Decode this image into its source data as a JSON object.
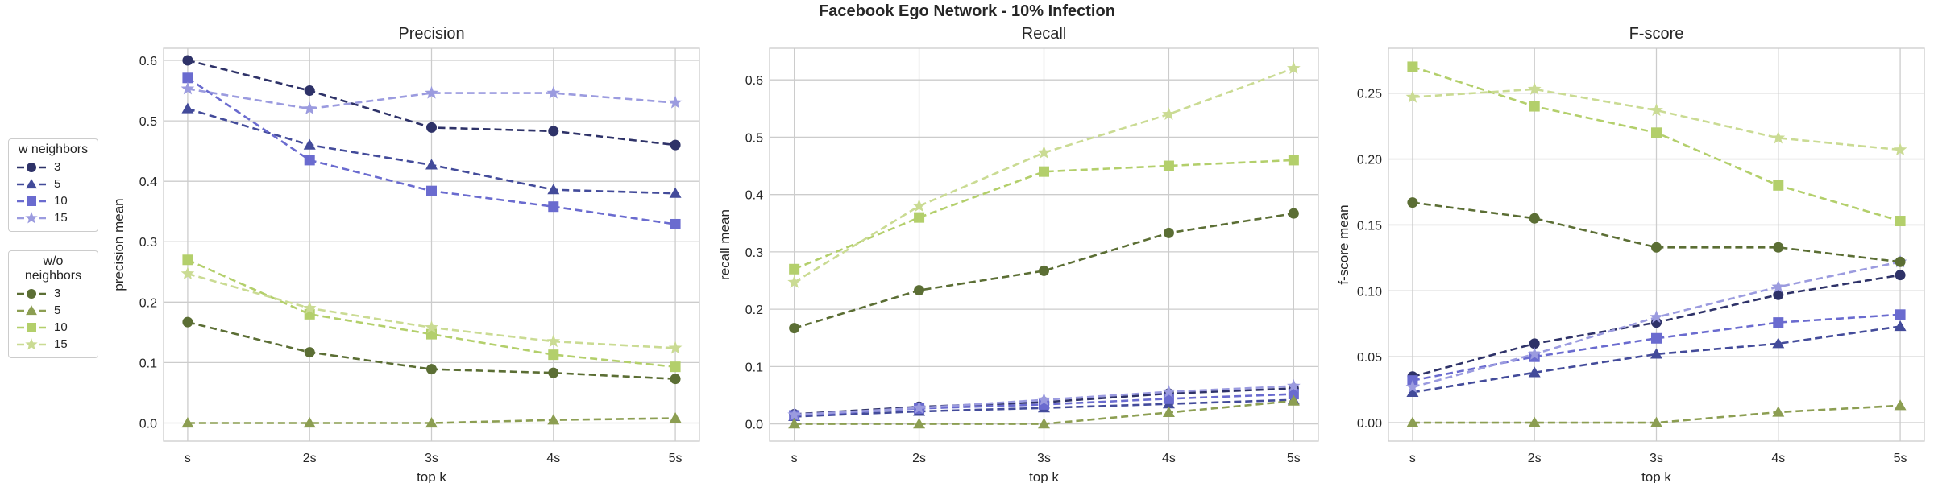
{
  "figure_title": "Facebook Ego Network - 10% Infection",
  "legends": [
    {
      "title": "w neighbors",
      "entries": [
        {
          "label": "3",
          "color": "#2e3268",
          "marker": "circle"
        },
        {
          "label": "5",
          "color": "#434b9a",
          "marker": "triangle"
        },
        {
          "label": "10",
          "color": "#6a6bcf",
          "marker": "square"
        },
        {
          "label": "15",
          "color": "#9b9bdf",
          "marker": "star"
        }
      ]
    },
    {
      "title": "w/o neighbors",
      "entries": [
        {
          "label": "3",
          "color": "#5b6e34",
          "marker": "circle"
        },
        {
          "label": "5",
          "color": "#8c9e52",
          "marker": "triangle"
        },
        {
          "label": "10",
          "color": "#b3cf6b",
          "marker": "square"
        },
        {
          "label": "15",
          "color": "#cadb93",
          "marker": "star"
        }
      ]
    }
  ],
  "chart_data": [
    {
      "type": "line",
      "title": "Precision",
      "xlabel": "top k",
      "ylabel": "precision mean",
      "categories": [
        "s",
        "2s",
        "3s",
        "4s",
        "5s"
      ],
      "ylim": [
        -0.03,
        0.62
      ],
      "yticks": [
        0.0,
        0.1,
        0.2,
        0.3,
        0.4,
        0.5,
        0.6
      ],
      "ytick_labels": [
        "0.0",
        "0.1",
        "0.2",
        "0.3",
        "0.4",
        "0.5",
        "0.6"
      ],
      "grid": true,
      "series": [
        {
          "name": "w neighbors 3",
          "color": "#2e3268",
          "marker": "circle",
          "values": [
            0.6,
            0.55,
            0.489,
            0.483,
            0.46
          ]
        },
        {
          "name": "w neighbors 5",
          "color": "#434b9a",
          "marker": "triangle",
          "values": [
            0.52,
            0.46,
            0.427,
            0.386,
            0.38
          ]
        },
        {
          "name": "w neighbors 10",
          "color": "#6a6bcf",
          "marker": "square",
          "values": [
            0.571,
            0.435,
            0.384,
            0.358,
            0.329
          ]
        },
        {
          "name": "w neighbors 15",
          "color": "#9b9bdf",
          "marker": "star",
          "values": [
            0.553,
            0.52,
            0.546,
            0.546,
            0.53
          ]
        },
        {
          "name": "w/o neighbors 3",
          "color": "#5b6e34",
          "marker": "circle",
          "values": [
            0.167,
            0.117,
            0.089,
            0.083,
            0.073
          ]
        },
        {
          "name": "w/o neighbors 5",
          "color": "#8c9e52",
          "marker": "triangle",
          "values": [
            0.0,
            0.0,
            0.0,
            0.005,
            0.008
          ]
        },
        {
          "name": "w/o neighbors 10",
          "color": "#b3cf6b",
          "marker": "square",
          "values": [
            0.27,
            0.18,
            0.147,
            0.113,
            0.093
          ]
        },
        {
          "name": "w/o neighbors 15",
          "color": "#cadb93",
          "marker": "star",
          "values": [
            0.247,
            0.19,
            0.158,
            0.135,
            0.124
          ]
        }
      ]
    },
    {
      "type": "line",
      "title": "Recall",
      "xlabel": "top k",
      "ylabel": "recall mean",
      "categories": [
        "s",
        "2s",
        "3s",
        "4s",
        "5s"
      ],
      "ylim": [
        -0.03,
        0.655
      ],
      "yticks": [
        0.0,
        0.1,
        0.2,
        0.3,
        0.4,
        0.5,
        0.6
      ],
      "ytick_labels": [
        "0.0",
        "0.1",
        "0.2",
        "0.3",
        "0.4",
        "0.5",
        "0.6"
      ],
      "grid": true,
      "series": [
        {
          "name": "w neighbors 3",
          "color": "#2e3268",
          "marker": "circle",
          "values": [
            0.017,
            0.03,
            0.038,
            0.053,
            0.062
          ]
        },
        {
          "name": "w neighbors 5",
          "color": "#434b9a",
          "marker": "triangle",
          "values": [
            0.013,
            0.022,
            0.028,
            0.035,
            0.042
          ]
        },
        {
          "name": "w neighbors 10",
          "color": "#6a6bcf",
          "marker": "square",
          "values": [
            0.015,
            0.027,
            0.034,
            0.044,
            0.052
          ]
        },
        {
          "name": "w neighbors 15",
          "color": "#9b9bdf",
          "marker": "star",
          "values": [
            0.016,
            0.028,
            0.042,
            0.056,
            0.066
          ]
        },
        {
          "name": "w/o neighbors 3",
          "color": "#5b6e34",
          "marker": "circle",
          "values": [
            0.167,
            0.233,
            0.267,
            0.333,
            0.367
          ]
        },
        {
          "name": "w/o neighbors 5",
          "color": "#8c9e52",
          "marker": "triangle",
          "values": [
            0.0,
            0.0,
            0.0,
            0.02,
            0.04
          ]
        },
        {
          "name": "w/o neighbors 10",
          "color": "#b3cf6b",
          "marker": "square",
          "values": [
            0.27,
            0.36,
            0.44,
            0.45,
            0.46
          ]
        },
        {
          "name": "w/o neighbors 15",
          "color": "#cadb93",
          "marker": "star",
          "values": [
            0.247,
            0.38,
            0.473,
            0.54,
            0.62
          ]
        }
      ]
    },
    {
      "type": "line",
      "title": "F-score",
      "xlabel": "top k",
      "ylabel": "f-score mean",
      "categories": [
        "s",
        "2s",
        "3s",
        "4s",
        "5s"
      ],
      "ylim": [
        -0.014,
        0.284
      ],
      "yticks": [
        0.0,
        0.05,
        0.1,
        0.15,
        0.2,
        0.25
      ],
      "ytick_labels": [
        "0.00",
        "0.05",
        "0.10",
        "0.15",
        "0.20",
        "0.25"
      ],
      "grid": true,
      "series": [
        {
          "name": "w neighbors 3",
          "color": "#2e3268",
          "marker": "circle",
          "values": [
            0.035,
            0.06,
            0.076,
            0.097,
            0.112
          ]
        },
        {
          "name": "w neighbors 5",
          "color": "#434b9a",
          "marker": "triangle",
          "values": [
            0.023,
            0.038,
            0.052,
            0.06,
            0.073
          ]
        },
        {
          "name": "w neighbors 10",
          "color": "#6a6bcf",
          "marker": "square",
          "values": [
            0.032,
            0.05,
            0.064,
            0.076,
            0.082
          ]
        },
        {
          "name": "w neighbors 15",
          "color": "#9b9bdf",
          "marker": "star",
          "values": [
            0.027,
            0.052,
            0.08,
            0.103,
            0.122
          ]
        },
        {
          "name": "w/o neighbors 3",
          "color": "#5b6e34",
          "marker": "circle",
          "values": [
            0.167,
            0.155,
            0.133,
            0.133,
            0.122
          ]
        },
        {
          "name": "w/o neighbors 5",
          "color": "#8c9e52",
          "marker": "triangle",
          "values": [
            0.0,
            0.0,
            0.0,
            0.008,
            0.013
          ]
        },
        {
          "name": "w/o neighbors 10",
          "color": "#b3cf6b",
          "marker": "square",
          "values": [
            0.27,
            0.24,
            0.22,
            0.18,
            0.153
          ]
        },
        {
          "name": "w/o neighbors 15",
          "color": "#cadb93",
          "marker": "star",
          "values": [
            0.247,
            0.253,
            0.237,
            0.216,
            0.207
          ]
        }
      ]
    }
  ]
}
